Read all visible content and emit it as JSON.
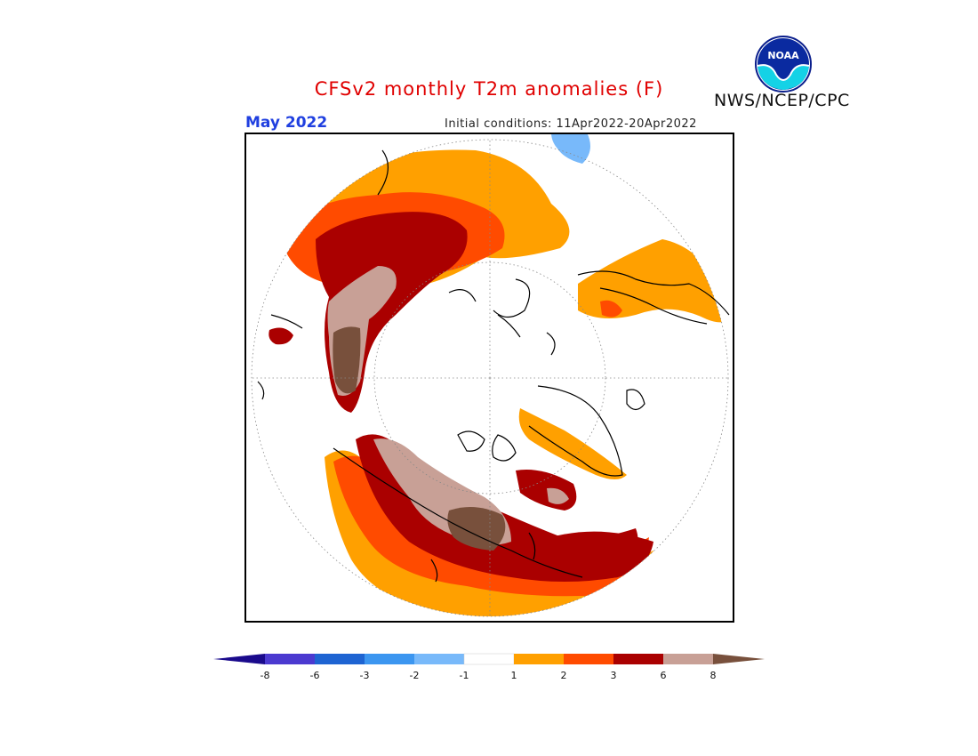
{
  "header": {
    "title": "CFSv2 monthly T2m anomalies (F)",
    "agency": "NWS/NCEP/CPC",
    "logo_text": "NOAA",
    "month": "May 2022",
    "initial_conditions": "Initial conditions: 11Apr2022-20Apr2022"
  },
  "legend": {
    "tick_labels": [
      "-8",
      "-6",
      "-3",
      "-2",
      "-1",
      "1",
      "2",
      "3",
      "6",
      "8"
    ],
    "colors": {
      "lt_neg8": "#1a0a8c",
      "neg8_neg6": "#4b3ad0",
      "neg6_neg3": "#1e64d2",
      "neg3_neg2": "#3c96f0",
      "neg2_neg1": "#78b9fa",
      "neg1_1": "#ffffff",
      "1_2": "#ffa000",
      "2_3": "#ff4b00",
      "3_6": "#aa0000",
      "6_8": "#c8a096",
      "gt_8": "#78503c"
    }
  },
  "colors": {
    "title": "#e00000",
    "month": "#2040e0",
    "coastline": "#000000"
  }
}
